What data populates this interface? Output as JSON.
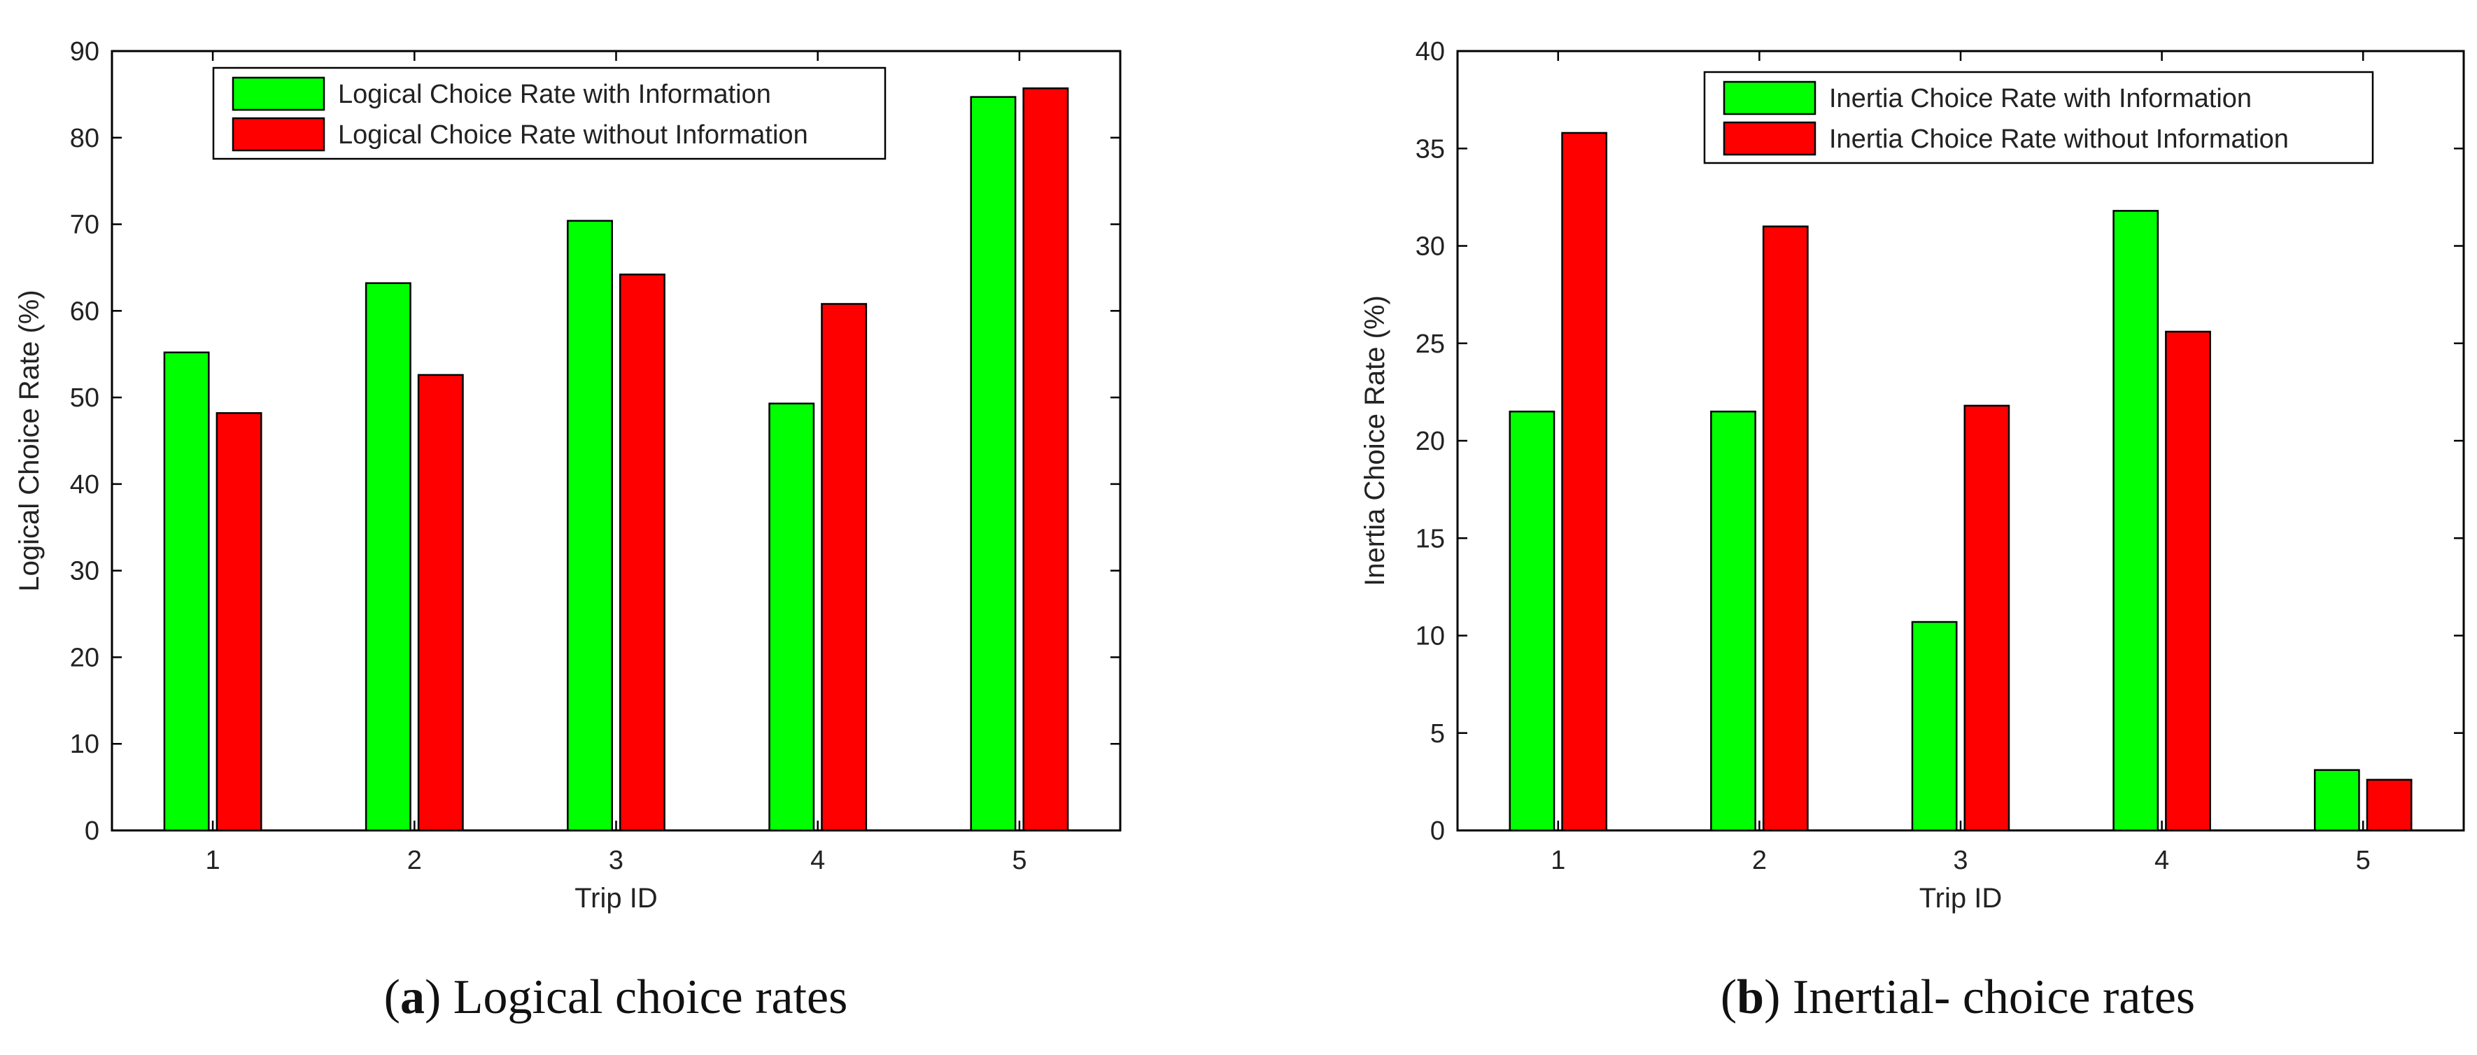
{
  "chart_data": [
    {
      "type": "bar",
      "title": "",
      "xlabel": "Trip ID",
      "ylabel": "Logical Choice Rate (%)",
      "categories": [
        "1",
        "2",
        "3",
        "4",
        "5"
      ],
      "ylim": [
        0,
        90
      ],
      "yticks": [
        "0",
        "10",
        "20",
        "30",
        "40",
        "50",
        "60",
        "70",
        "80",
        "90"
      ],
      "legend_position": "top-center",
      "series": [
        {
          "name": "Logical Choice Rate with Information",
          "color": "#00ff00",
          "values": [
            55.2,
            63.2,
            70.4,
            49.3,
            84.7
          ]
        },
        {
          "name": "Logical Choice Rate without Information",
          "color": "#ff0000",
          "values": [
            48.2,
            52.6,
            64.2,
            60.8,
            85.7
          ]
        }
      ],
      "caption": {
        "label": "a",
        "text": " Logical choice rates"
      }
    },
    {
      "type": "bar",
      "title": "",
      "xlabel": "Trip ID",
      "ylabel": "Inertia Choice Rate (%)",
      "categories": [
        "1",
        "2",
        "3",
        "4",
        "5"
      ],
      "ylim": [
        0,
        40
      ],
      "yticks": [
        "0",
        "5",
        "10",
        "15",
        "20",
        "25",
        "30",
        "35",
        "40"
      ],
      "legend_position": "top-center",
      "series": [
        {
          "name": "Inertia Choice Rate with Information",
          "color": "#00ff00",
          "values": [
            21.5,
            21.5,
            10.7,
            31.8,
            3.1
          ]
        },
        {
          "name": "Inertia Choice Rate without Information",
          "color": "#ff0000",
          "values": [
            35.8,
            31.0,
            21.8,
            25.6,
            2.6
          ]
        }
      ],
      "caption": {
        "label": "b",
        "text": " Inertial- choice rates"
      }
    }
  ]
}
